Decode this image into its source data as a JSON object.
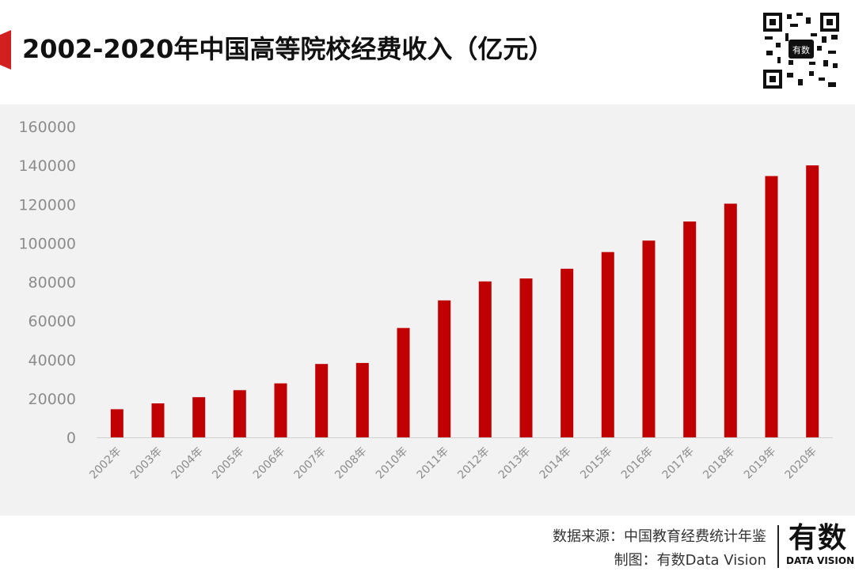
{
  "header": {
    "title": "2002-2020年中国高等院校经费收入（亿元）",
    "accent_color": "#d21f1f"
  },
  "qr_code": {
    "icon": "qr-code-icon",
    "badge": "有数"
  },
  "colors": {
    "bar": "#c00000",
    "panel_bg": "#f2f2f2",
    "tick": "#8c8c8c"
  },
  "chart_data": {
    "type": "bar",
    "title": "2002-2020年中国高等院校经费收入（亿元）",
    "xlabel": "",
    "ylabel": "",
    "ylim": [
      0,
      160000
    ],
    "yticks": [
      "0",
      "20000",
      "40000",
      "60000",
      "80000",
      "100000",
      "120000",
      "140000",
      "160000"
    ],
    "grid": false,
    "legend": "none",
    "categories": [
      "2002年",
      "2003年",
      "2004年",
      "2005年",
      "2006年",
      "2007年",
      "2008年",
      "2010年",
      "2011年",
      "2012年",
      "2013年",
      "2014年",
      "2015年",
      "2016年",
      "2017年",
      "2018年",
      "2019年",
      "2020年"
    ],
    "values": [
      14500,
      17500,
      20700,
      24300,
      27800,
      37800,
      38300,
      56300,
      70500,
      80300,
      81800,
      86800,
      95400,
      101300,
      111100,
      120300,
      134500,
      140000
    ]
  },
  "footer": {
    "source": "数据来源：中国教育经费统计年鉴",
    "maker": "制图：有数Data Vision"
  },
  "brand": {
    "name_cn": "有数",
    "name_en": "DATA VISION"
  }
}
